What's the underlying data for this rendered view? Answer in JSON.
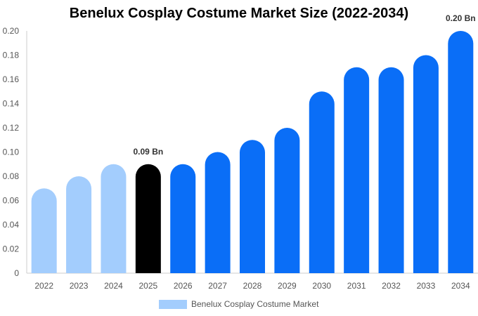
{
  "chart_data": {
    "type": "bar",
    "title": "Benelux Cosplay Costume Market Size (2022-2034)",
    "xlabel": "",
    "ylabel": "",
    "ylim": [
      0,
      0.2
    ],
    "yticks": [
      "0",
      "0.02",
      "0.04",
      "0.06",
      "0.08",
      "0.10",
      "0.12",
      "0.14",
      "0.16",
      "0.18",
      "0.20"
    ],
    "categories": [
      "2022",
      "2023",
      "2024",
      "2025",
      "2026",
      "2027",
      "2028",
      "2029",
      "2030",
      "2031",
      "2032",
      "2033",
      "2034"
    ],
    "series": [
      {
        "name": "Benelux Cosplay Costume Market",
        "values": [
          0.07,
          0.08,
          0.09,
          0.09,
          0.09,
          0.1,
          0.11,
          0.12,
          0.15,
          0.17,
          0.17,
          0.18,
          0.2
        ]
      }
    ],
    "bar_colors": [
      "#a3cdfd",
      "#a3cdfd",
      "#a3cdfd",
      "#000000",
      "#0a6ef7",
      "#0a6ef7",
      "#0a6ef7",
      "#0a6ef7",
      "#0a6ef7",
      "#0a6ef7",
      "#0a6ef7",
      "#0a6ef7",
      "#0a6ef7"
    ],
    "data_labels": [
      {
        "category": "2025",
        "text": "0.09 Bn"
      },
      {
        "category": "2034",
        "text": "0.20 Bn"
      }
    ],
    "legend": {
      "position": "bottom",
      "label": "Benelux Cosplay Costume Market",
      "color": "#a3cdfd"
    },
    "grid": false
  }
}
